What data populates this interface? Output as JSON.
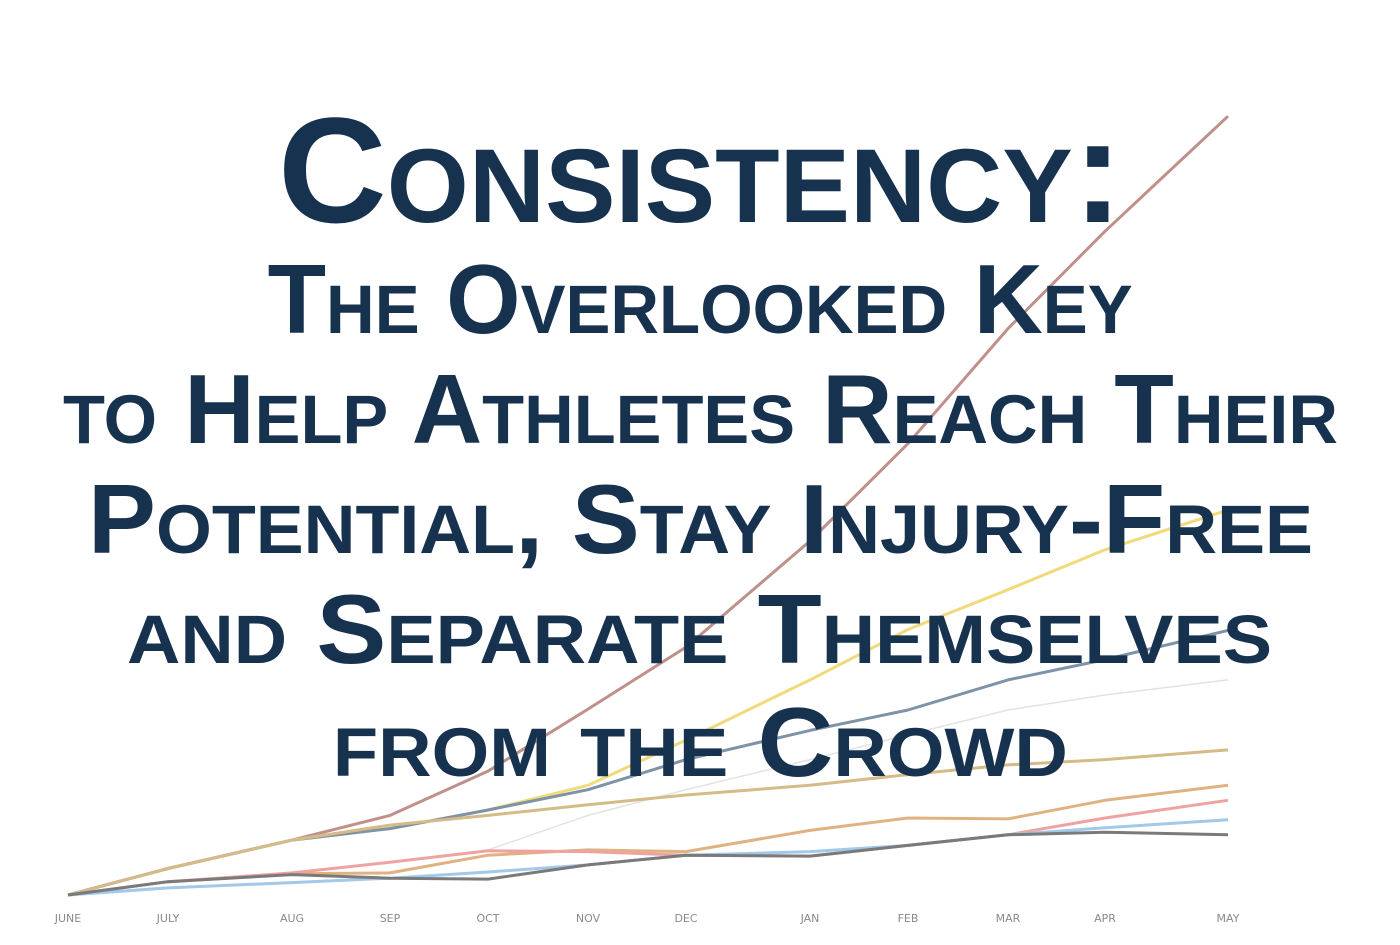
{
  "title": {
    "line1": "Consistency:",
    "line2": "The Overlooked Key",
    "line3": "to Help Athletes Reach Their",
    "line4": "Potential, Stay Injury-Free",
    "line5": "and Separate Themselves",
    "line6": "from the Crowd"
  },
  "colors": {
    "title": "#17324f",
    "tick_labels": "#8a8a8a"
  },
  "chart_data": {
    "type": "line",
    "title": "",
    "xlabel": "",
    "ylabel": "",
    "categories": [
      "JUNE",
      "JULY",
      "AUG",
      "SEP",
      "OCT",
      "NOV",
      "DEC",
      "JAN",
      "FEB",
      "MAR",
      "APR",
      "MAY"
    ],
    "ylim": [
      0,
      100
    ],
    "y_axis_shown": false,
    "grid": false,
    "legend": "none",
    "series": [
      {
        "color": "#c0908a",
        "values": [
          0,
          3,
          6.2,
          9,
          14,
          21,
          28,
          40,
          51,
          64,
          75,
          88
        ]
      },
      {
        "color": "#f0da7a",
        "values": [
          null,
          null,
          6.2,
          7.5,
          9.6,
          12.4,
          17.5,
          24.3,
          30,
          34.5,
          39,
          43.5
        ]
      },
      {
        "color": "#7f93a7",
        "values": [
          0,
          3,
          6.2,
          7.5,
          9.6,
          11.9,
          15.3,
          18.6,
          20.9,
          24.3,
          26.6,
          29.9
        ]
      },
      {
        "color": "#e2e2e2",
        "values": [
          null,
          null,
          null,
          null,
          5.1,
          9,
          11.9,
          15.3,
          18.1,
          20.9,
          22.6,
          24.3
        ]
      },
      {
        "color": "#d4bb88",
        "values": [
          0,
          3,
          6.2,
          7.9,
          9,
          10.2,
          11.3,
          12.4,
          13.6,
          14.7,
          15.3,
          16.4
        ]
      },
      {
        "color": "#e0b282",
        "values": [
          0,
          1.5,
          2.4,
          2.5,
          4.5,
          5.1,
          4.9,
          7.3,
          8.7,
          8.6,
          10.7,
          12.4
        ]
      },
      {
        "color": "#eea3a0",
        "values": [
          0,
          1.5,
          2.5,
          3.7,
          5,
          4.9,
          4.5,
          4.4,
          5.6,
          6.8,
          8.7,
          10.7
        ]
      },
      {
        "color": "#a2c8ea",
        "values": [
          0,
          0.8,
          1.4,
          1.9,
          2.6,
          3.4,
          4.5,
          4.9,
          5.6,
          6.8,
          7.6,
          8.5
        ]
      },
      {
        "color": "#7a7a7a",
        "values": [
          0,
          1.5,
          2.3,
          1.9,
          1.8,
          3.4,
          4.5,
          4.4,
          5.6,
          6.8,
          7.1,
          6.8
        ]
      }
    ]
  }
}
